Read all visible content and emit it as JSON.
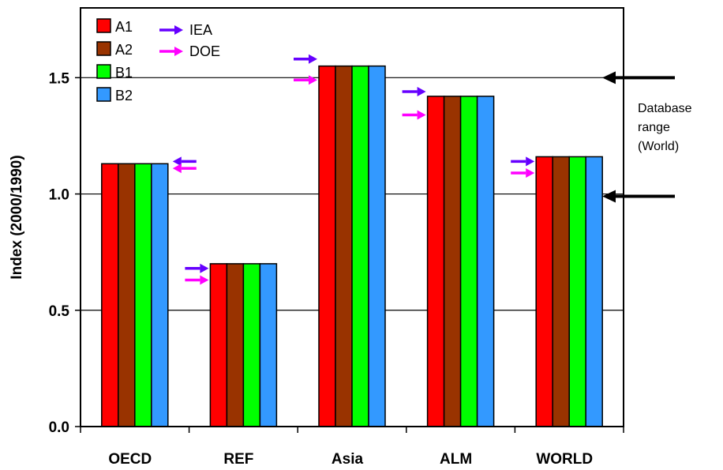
{
  "chart_data": {
    "type": "bar",
    "title": "",
    "xlabel": "",
    "ylabel": "Index (2000/1990)",
    "ylim": [
      0,
      1.8
    ],
    "yticks": [
      0.0,
      0.5,
      1.0,
      1.5
    ],
    "ytick_labels": [
      "0.0",
      "0.5",
      "1.0",
      "1.5"
    ],
    "grid": "horizontal",
    "legend_position": "top-left",
    "categories": [
      "OECD",
      "REF",
      "Asia",
      "ALM",
      "WORLD"
    ],
    "series": [
      {
        "name": "A1",
        "color": "#ff0000",
        "values": [
          1.13,
          0.7,
          1.55,
          1.42,
          1.16
        ]
      },
      {
        "name": "A2",
        "color": "#993300",
        "values": [
          1.13,
          0.7,
          1.55,
          1.42,
          1.16
        ]
      },
      {
        "name": "B1",
        "color": "#00ff00",
        "values": [
          1.13,
          0.7,
          1.55,
          1.42,
          1.16
        ]
      },
      {
        "name": "B2",
        "color": "#3399ff",
        "values": [
          1.13,
          0.7,
          1.55,
          1.42,
          1.16
        ]
      }
    ],
    "markers": [
      {
        "name": "IEA",
        "color": "#6600ff",
        "values": [
          1.14,
          0.68,
          1.58,
          1.44,
          1.14
        ]
      },
      {
        "name": "DOE",
        "color": "#ff00ff",
        "values": [
          1.11,
          0.63,
          1.49,
          1.34,
          1.09
        ]
      }
    ],
    "annotation": {
      "lines": [
        "Database",
        "range",
        "(World)"
      ],
      "range_values": [
        1.5,
        0.99
      ]
    }
  }
}
